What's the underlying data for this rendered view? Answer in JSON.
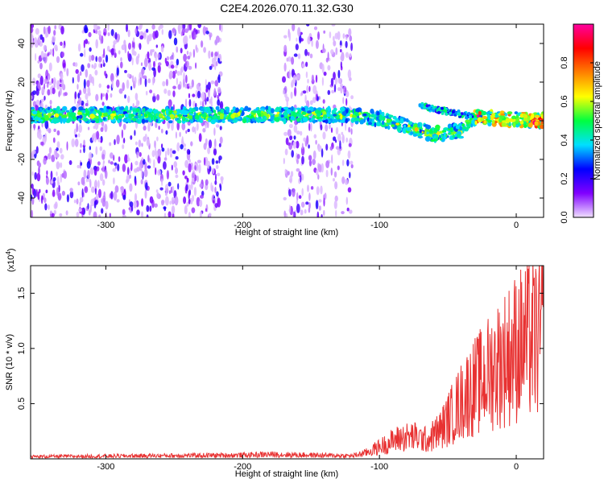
{
  "title": "C2E4.2026.070.11.32.G30",
  "chart_data": [
    {
      "type": "heatmap",
      "name": "spectrogram",
      "xlabel": "Height of straight line (km)",
      "ylabel": "Frequency (Hz)",
      "xlim": [
        -355,
        20
      ],
      "ylim": [
        -50,
        50
      ],
      "xticks": [
        -300,
        -200,
        -100,
        0
      ],
      "yticks": [
        -40,
        -20,
        0,
        20,
        40
      ],
      "band_center_hz": [
        [
          -355,
          3
        ],
        [
          -200,
          3
        ],
        [
          -120,
          3
        ],
        [
          -100,
          1
        ],
        [
          -80,
          -3
        ],
        [
          -65,
          -6
        ],
        [
          -60,
          -7
        ],
        [
          -40,
          -5
        ],
        [
          -30,
          2
        ],
        [
          -10,
          1
        ],
        [
          20,
          0
        ]
      ],
      "colorbar": {
        "label": "Normalized spectral amplitude",
        "ticks": [
          0.0,
          0.2,
          0.4,
          0.6,
          0.8
        ],
        "ticklabels": [
          "0.0",
          "0.2",
          "0.4",
          "0.6",
          "0.8"
        ],
        "range": [
          0,
          1
        ],
        "colors": [
          "#f0e0ff",
          "#8000ff",
          "#0000ff",
          "#00e0ff",
          "#00ff40",
          "#ffff00",
          "#ff8000",
          "#ff0000",
          "#ff00a0"
        ]
      }
    },
    {
      "type": "line",
      "name": "snr",
      "xlabel": "Height of straight line (km)",
      "ylabel": "SNR (10 * v/v)",
      "yscale_label": "(x10",
      "yscale_exp": "4",
      "yscale_close": ")",
      "xlim": [
        -355,
        20
      ],
      "ylim": [
        0,
        1.75
      ],
      "xticks": [
        -300,
        -200,
        -100,
        0
      ],
      "yticks": [
        0.5,
        1.0,
        1.5
      ],
      "yticklabels": [
        "0.5",
        "1.0",
        "1.5"
      ],
      "color": "#e83232",
      "envelope": [
        [
          -355,
          0.03
        ],
        [
          -200,
          0.05
        ],
        [
          -180,
          0.06
        ],
        [
          -120,
          0.04
        ],
        [
          -110,
          0.08
        ],
        [
          -95,
          0.2
        ],
        [
          -85,
          0.28
        ],
        [
          -75,
          0.3
        ],
        [
          -65,
          0.25
        ],
        [
          -55,
          0.4
        ],
        [
          -45,
          0.65
        ],
        [
          -35,
          0.9
        ],
        [
          -25,
          1.05
        ],
        [
          -15,
          1.25
        ],
        [
          -5,
          1.4
        ],
        [
          0,
          1.5
        ],
        [
          10,
          1.6
        ],
        [
          20,
          1.65
        ]
      ]
    }
  ]
}
